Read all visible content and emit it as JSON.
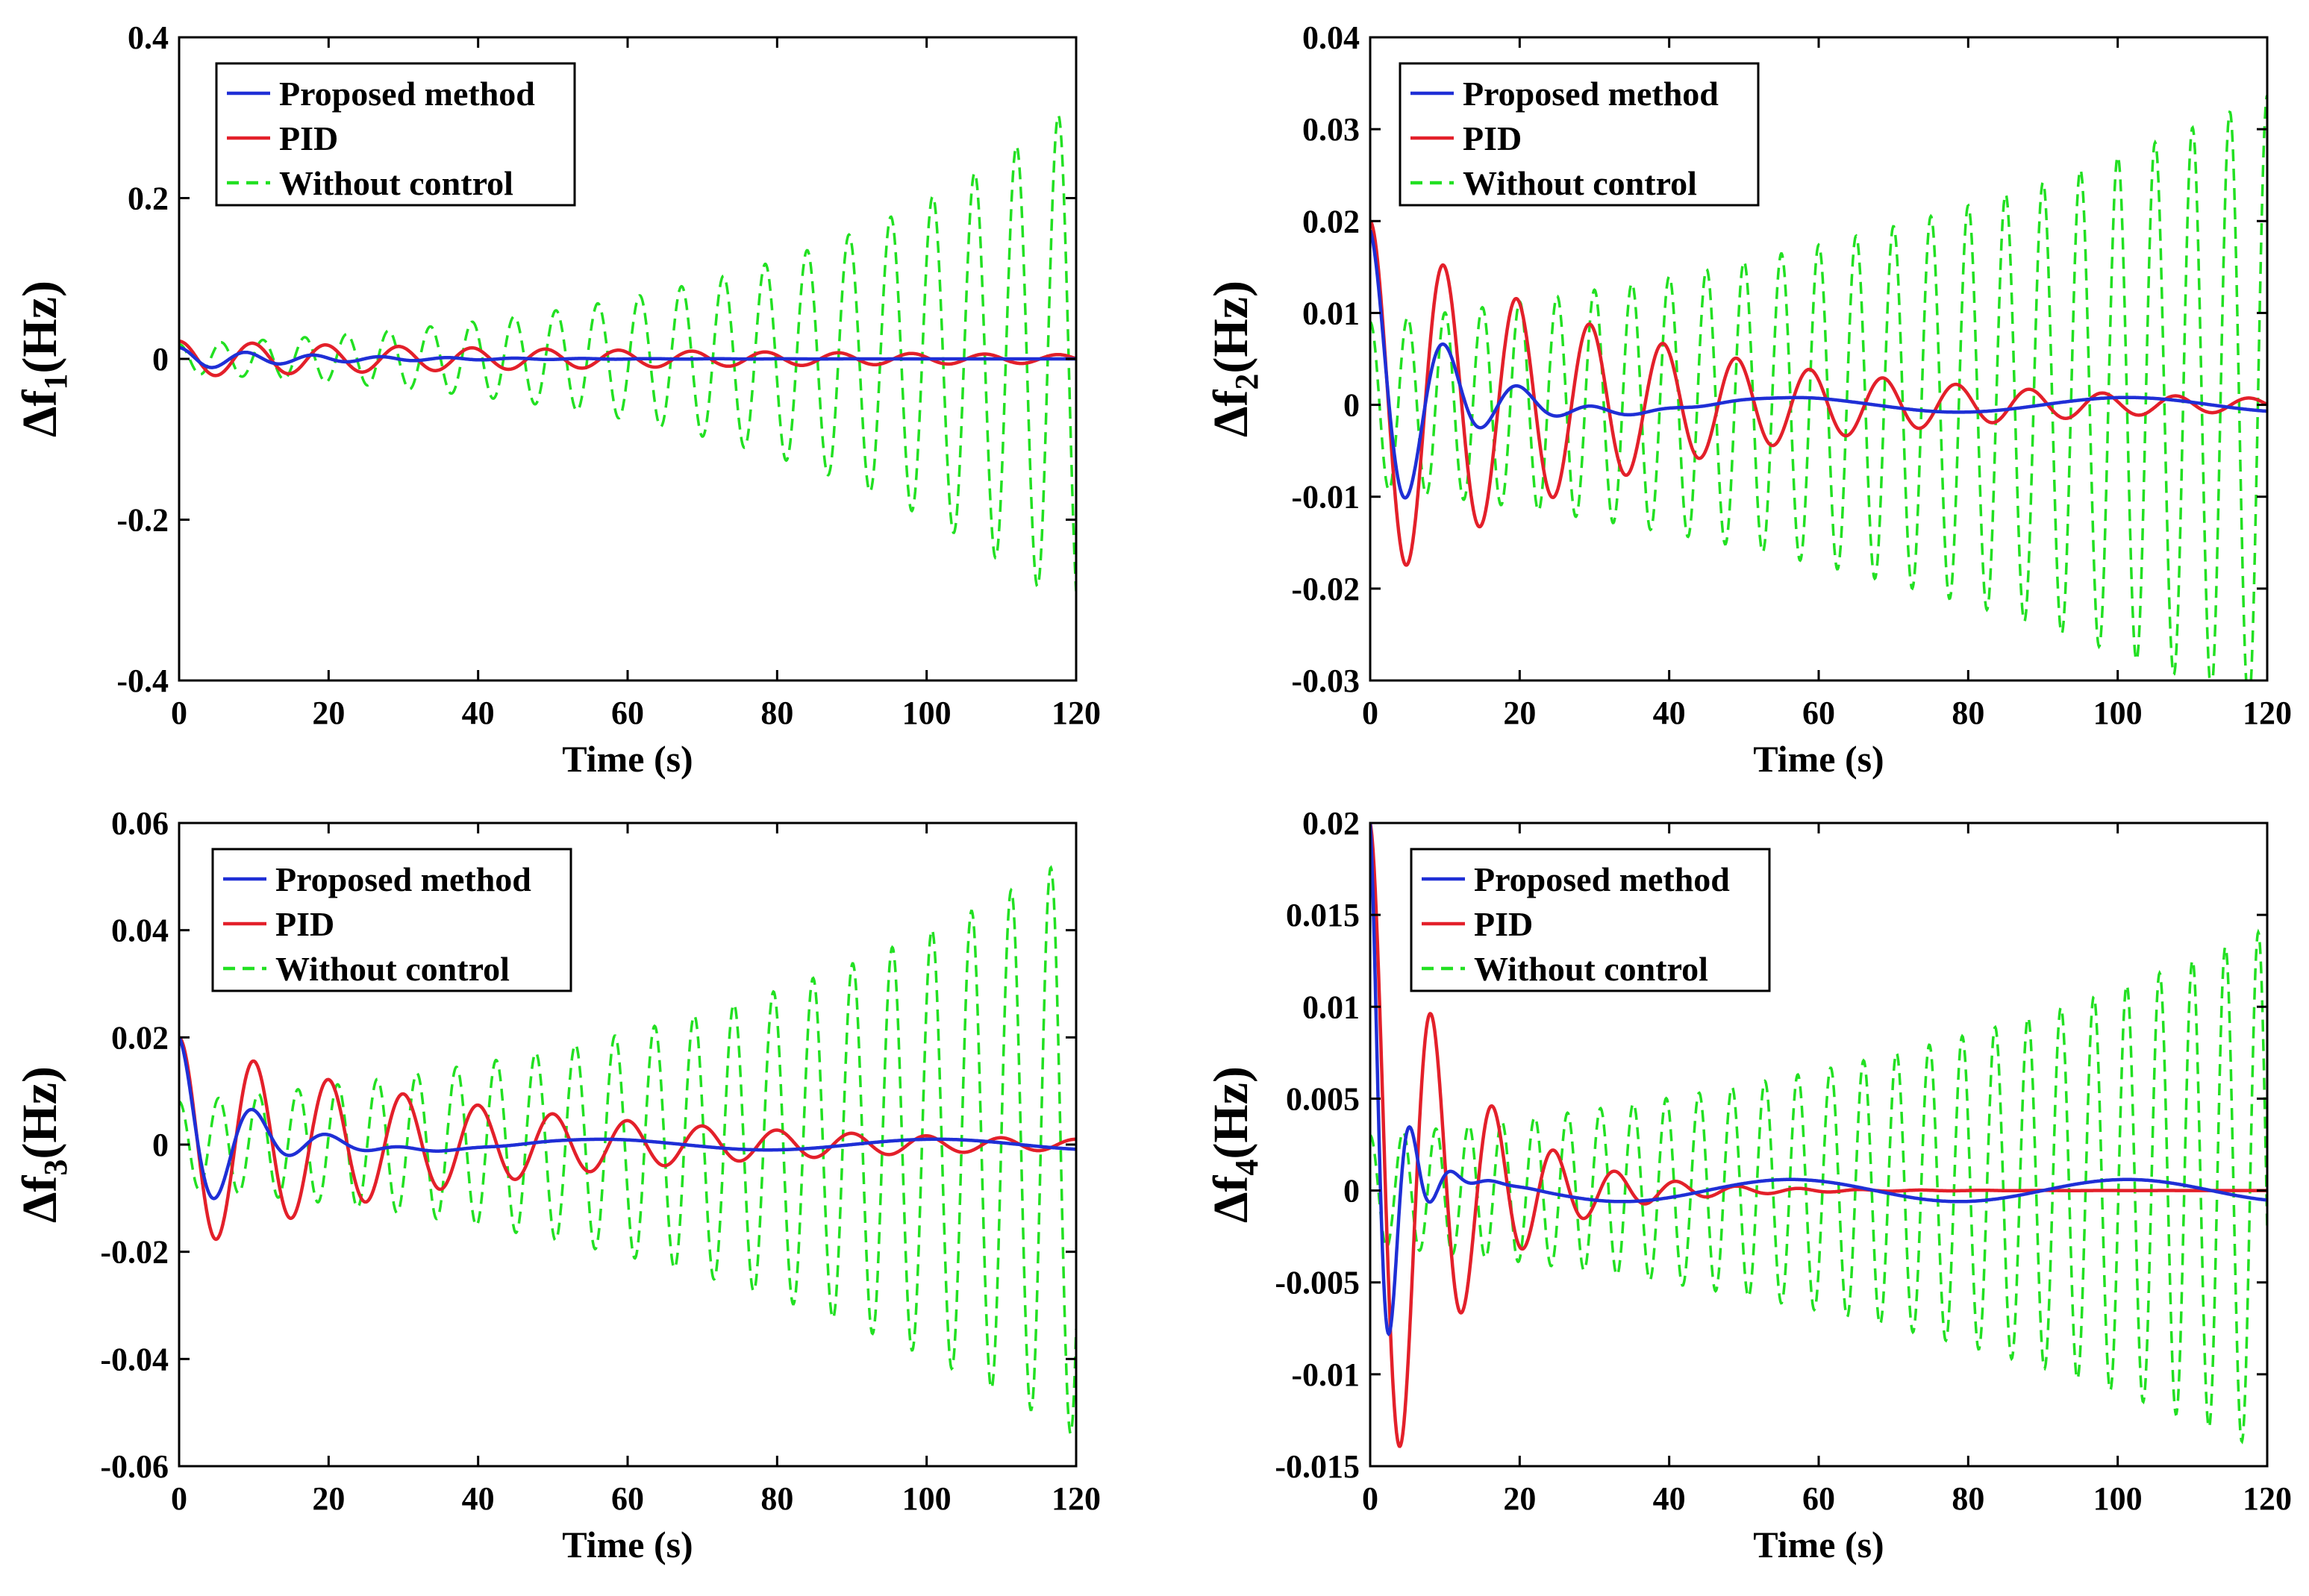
{
  "colors": {
    "proposed": "#1f2fd6",
    "pid": "#e3202a",
    "without": "#22e022"
  },
  "chart_data": [
    {
      "type": "line",
      "id": "f1",
      "ylabel_main": "Δf",
      "ylabel_sub": "1",
      "ylabel_unit": "(Hz)",
      "xlabel": "Time (s)",
      "xlim": [
        0,
        120
      ],
      "ylim": [
        -0.4,
        0.4
      ],
      "xticks": [
        "0",
        "20",
        "40",
        "60",
        "80",
        "100",
        "120"
      ],
      "yticks": [
        "-0.4",
        "-0.2",
        "0",
        "0.2",
        "0.4"
      ],
      "legend": [
        "Proposed method",
        "PID",
        "Without control"
      ],
      "legend_position": "top-left",
      "series": [
        {
          "name": "Proposed method",
          "style": "solid",
          "model": {
            "kind": "decay",
            "amp": 0.014,
            "decay": 0.06,
            "period": 9.0,
            "drift": 0.0,
            "x0": 0.5
          }
        },
        {
          "name": "PID",
          "style": "solid",
          "model": {
            "kind": "decay",
            "amp": 0.022,
            "decay": 0.012,
            "period": 9.8,
            "drift": 0.0,
            "x0": 0.5
          }
        },
        {
          "name": "Without control",
          "style": "dashed",
          "model": {
            "kind": "grow",
            "amp": 0.018,
            "growth": 0.024,
            "period": 5.6,
            "x0": 0.0
          }
        }
      ]
    },
    {
      "type": "line",
      "id": "f2",
      "ylabel_main": "Δf",
      "ylabel_sub": "2",
      "ylabel_unit": "(Hz)",
      "xlabel": "Time (s)",
      "xlim": [
        0,
        120
      ],
      "ylim": [
        -0.03,
        0.04
      ],
      "xticks": [
        "0",
        "20",
        "40",
        "60",
        "80",
        "100",
        "120"
      ],
      "yticks": [
        "-0.03",
        "-0.02",
        "-0.01",
        "0",
        "0.01",
        "0.02",
        "0.03",
        "0.04"
      ],
      "legend": [
        "Proposed method",
        "PID",
        "Without control"
      ],
      "legend_position": "top-left",
      "series": [
        {
          "name": "Proposed method",
          "style": "solid",
          "model": {
            "kind": "decay",
            "amp": 0.019,
            "decay": 0.12,
            "period": 10.0,
            "drift": 0.0008,
            "x0": 0.0
          }
        },
        {
          "name": "PID",
          "style": "solid",
          "model": {
            "kind": "decay",
            "amp": 0.02,
            "decay": 0.028,
            "period": 9.8,
            "drift": 0.0,
            "x0": 0.0
          }
        },
        {
          "name": "Without control",
          "style": "dashed",
          "model": {
            "kind": "grow",
            "amp": 0.009,
            "growth": 0.011,
            "period": 5.0,
            "x0": 0.0
          }
        }
      ]
    },
    {
      "type": "line",
      "id": "f3",
      "ylabel_main": "Δf",
      "ylabel_sub": "3",
      "ylabel_unit": "(Hz)",
      "xlabel": "Time (s)",
      "xlim": [
        0,
        120
      ],
      "ylim": [
        -0.06,
        0.06
      ],
      "xticks": [
        "0",
        "20",
        "40",
        "60",
        "80",
        "100",
        "120"
      ],
      "yticks": [
        "-0.06",
        "-0.04",
        "-0.02",
        "0",
        "0.02",
        "0.04",
        "0.06"
      ],
      "legend": [
        "Proposed method",
        "PID",
        "Without control"
      ],
      "legend_position": "top-left",
      "series": [
        {
          "name": "Proposed method",
          "style": "solid",
          "model": {
            "kind": "decay",
            "amp": 0.02,
            "decay": 0.13,
            "period": 10.0,
            "drift": 0.001,
            "x0": 0.0
          }
        },
        {
          "name": "PID",
          "style": "solid",
          "model": {
            "kind": "decay",
            "amp": 0.02,
            "decay": 0.025,
            "period": 10.0,
            "drift": 0.0,
            "x0": 0.0
          }
        },
        {
          "name": "Without control",
          "style": "dashed",
          "model": {
            "kind": "grow",
            "amp": 0.008,
            "growth": 0.016,
            "period": 5.3,
            "x0": 0.0
          }
        }
      ]
    },
    {
      "type": "line",
      "id": "f4",
      "ylabel_main": "Δf",
      "ylabel_sub": "4",
      "ylabel_unit": "(Hz)",
      "xlabel": "Time (s)",
      "xlim": [
        0,
        120
      ],
      "ylim": [
        -0.015,
        0.02
      ],
      "xticks": [
        "0",
        "20",
        "40",
        "60",
        "80",
        "100",
        "120"
      ],
      "yticks": [
        "-0.015",
        "-0.01",
        "-0.005",
        "0",
        "0.005",
        "0.01",
        "0.015",
        "0.02"
      ],
      "legend": [
        "Proposed method",
        "PID",
        "Without control"
      ],
      "legend_position": "top-left",
      "series": [
        {
          "name": "Proposed method",
          "style": "solid",
          "model": {
            "kind": "decay",
            "amp": 0.02,
            "decay": 0.35,
            "period": 5.5,
            "drift": 0.0006,
            "x0": 0.0
          }
        },
        {
          "name": "PID",
          "style": "solid",
          "model": {
            "kind": "decay",
            "amp": 0.02,
            "decay": 0.09,
            "period": 8.2,
            "drift": 0.0,
            "x0": 0.0
          }
        },
        {
          "name": "Without control",
          "style": "dashed",
          "model": {
            "kind": "grow",
            "amp": 0.003,
            "growth": 0.013,
            "period": 4.4,
            "x0": 0.0
          }
        }
      ]
    }
  ]
}
